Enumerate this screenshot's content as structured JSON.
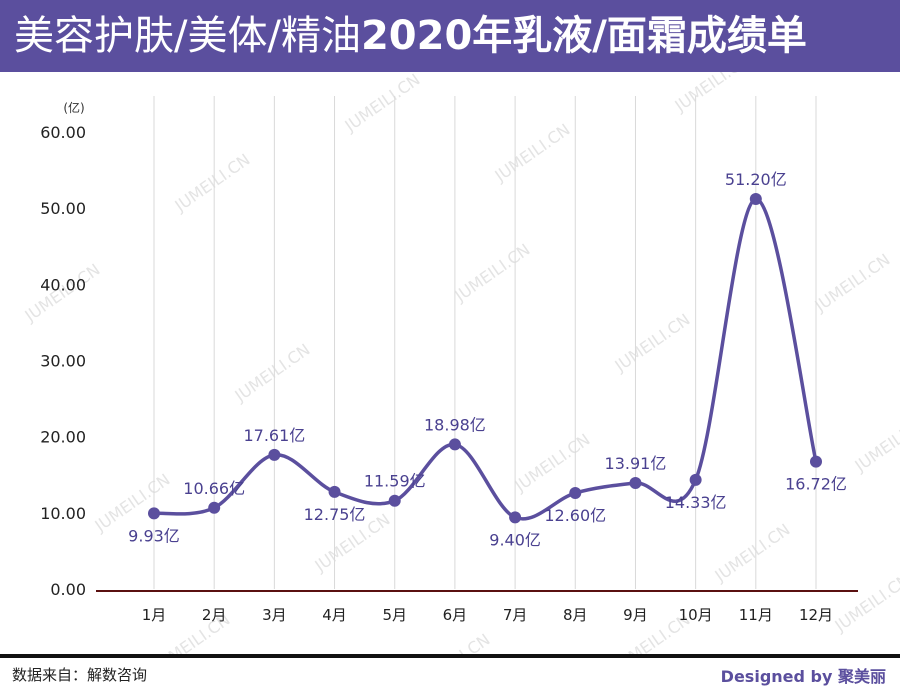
{
  "header": {
    "title_prefix": "美容护肤/美体/精油",
    "title_main": "2020年乳液/面霜成绩单"
  },
  "chart_data": {
    "type": "line",
    "title": "美容护肤/美体/精油2020年乳液/面霜成绩单",
    "unit_label": "(亿)",
    "categories": [
      "1月",
      "2月",
      "3月",
      "4月",
      "5月",
      "6月",
      "7月",
      "8月",
      "9月",
      "10月",
      "11月",
      "12月"
    ],
    "values": [
      9.93,
      10.66,
      17.61,
      12.75,
      11.59,
      18.98,
      9.4,
      12.6,
      13.91,
      14.33,
      51.2,
      16.72
    ],
    "data_labels": [
      "9.93亿",
      "10.66亿",
      "17.61亿",
      "12.75亿",
      "11.59亿",
      "18.98亿",
      "9.40亿",
      "12.60亿",
      "13.91亿",
      "14.33亿",
      "51.20亿",
      "16.72亿"
    ],
    "label_side": [
      "below",
      "above",
      "above",
      "below",
      "above",
      "above",
      "below",
      "below",
      "above",
      "below",
      "above",
      "below"
    ],
    "y_ticks": [
      "0.00",
      "10.00",
      "20.00",
      "30.00",
      "40.00",
      "50.00",
      "60.00"
    ],
    "ylim": [
      0,
      60
    ],
    "grid": "vertical",
    "line_color": "#5b4f9e",
    "label_color": "#4a4190",
    "watermark": "JUMEILI.CN"
  },
  "footer": {
    "source": "数据来自：解数咨询",
    "designed_by": "Designed by 聚美丽"
  }
}
